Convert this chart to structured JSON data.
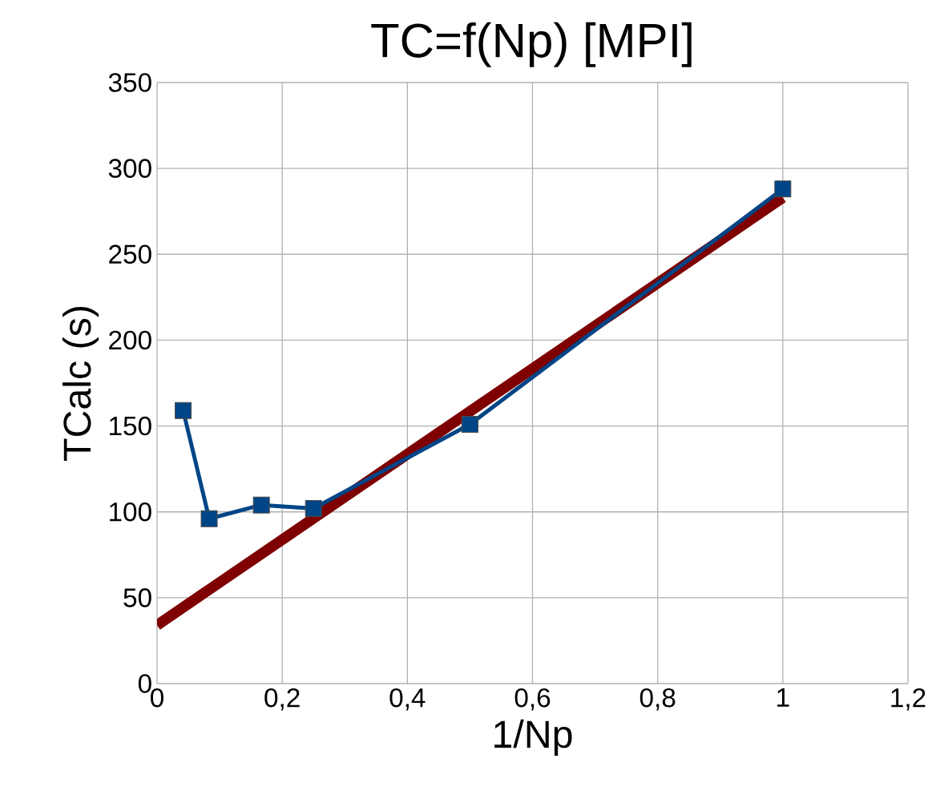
{
  "chart_data": {
    "type": "line",
    "title": "TC=f(Np) [MPI]",
    "xlabel": "1/Np",
    "ylabel": "TCalc (s)",
    "series": [
      {
        "color": "#004586",
        "marker": "square",
        "x": [
          0.0417,
          0.0833,
          0.1667,
          0.25,
          0.5,
          1
        ],
        "values": [
          159,
          96,
          104,
          102,
          151,
          288
        ]
      },
      {
        "color": "#7e0000",
        "marker": "none",
        "x": [
          0,
          1
        ],
        "values": [
          34,
          283
        ]
      }
    ],
    "xlim": [
      0,
      1.2
    ],
    "ylim": [
      0,
      350
    ],
    "xticks": [
      0,
      {
        "value": 0.2,
        "label": "0,2"
      },
      {
        "value": 0.4,
        "label": "0,4"
      },
      {
        "value": 0.6,
        "label": "0,6"
      },
      {
        "value": 0.8,
        "label": "0,8"
      },
      1,
      {
        "value": 1.2,
        "label": "1,2"
      }
    ],
    "yticks": [
      0,
      50,
      100,
      150,
      200,
      250,
      300,
      350
    ],
    "grid": true
  }
}
